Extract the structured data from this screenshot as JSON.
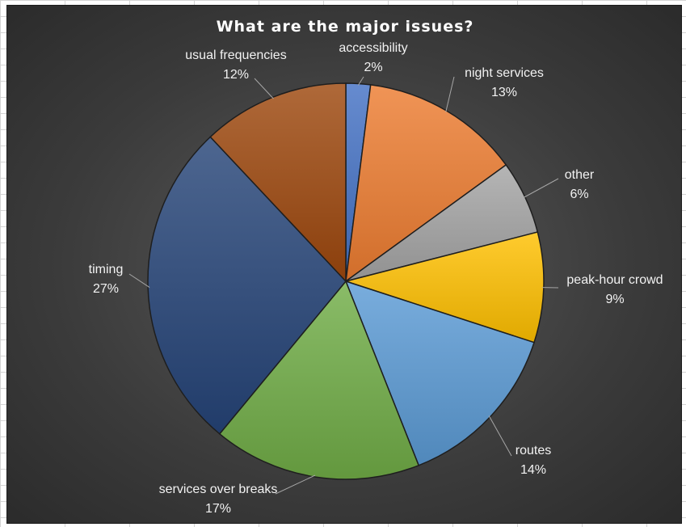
{
  "chart_data": {
    "type": "pie",
    "title": "What are the major issues?",
    "categories": [
      "accessibility",
      "night services",
      "other",
      "peak-hour crowd",
      "routes",
      "services over breaks",
      "timing",
      "usual frequencies"
    ],
    "values": [
      2,
      13,
      6,
      9,
      14,
      17,
      27,
      12
    ],
    "value_labels": [
      "2%",
      "13%",
      "6%",
      "9%",
      "14%",
      "17%",
      "27%",
      "12%"
    ],
    "colors": [
      "#4472C4",
      "#ED7D31",
      "#A5A5A5",
      "#FFC000",
      "#5B9BD5",
      "#70AD47",
      "#264478",
      "#9E480E"
    ],
    "start_angle_deg": 0,
    "direction": "clockwise",
    "legend": "none",
    "data_labels": "outside-with-leader-lines"
  }
}
